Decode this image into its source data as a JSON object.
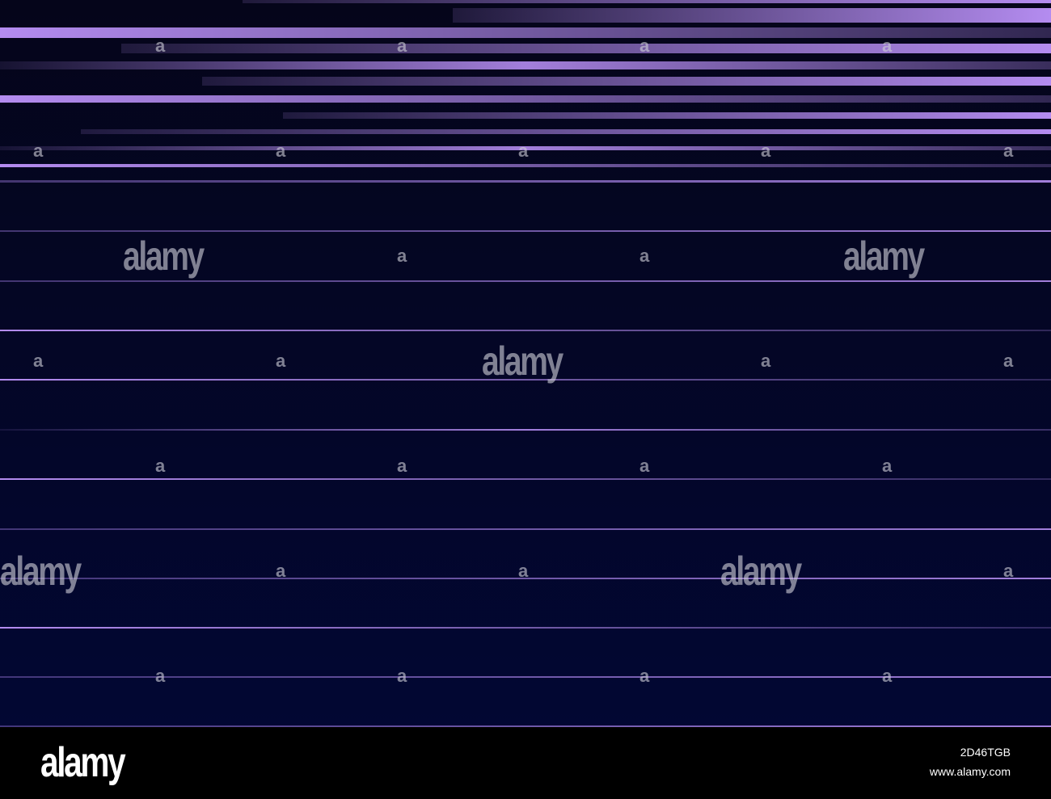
{
  "artwork": {
    "background_top": "#05051a",
    "background_bottom": "#020733",
    "stripe_color": "#b48cf0",
    "stripe_color_faint": "#6f4fa8"
  },
  "watermark": {
    "big_text": "alamy",
    "small_text": "a"
  },
  "footer": {
    "logo_text": "alamy",
    "image_id": "2D46TGB",
    "url": "www.alamy.com"
  }
}
